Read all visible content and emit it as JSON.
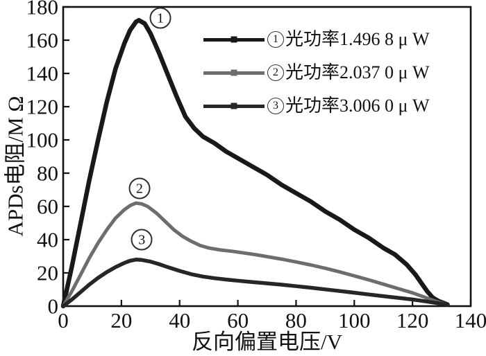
{
  "figure": {
    "background": "#ffffff",
    "axis_color": "#111111",
    "text_color": "#111111"
  },
  "chart_data": {
    "type": "line",
    "title": "",
    "xlabel": "反向偏置电压/V",
    "ylabel": "APDs电阻/M Ω",
    "xlim": [
      0,
      140
    ],
    "ylim": [
      0,
      180
    ],
    "xticks": [
      0,
      20,
      40,
      60,
      80,
      100,
      120,
      140
    ],
    "yticks": [
      0,
      20,
      40,
      60,
      80,
      100,
      120,
      140,
      160,
      180
    ],
    "grid": false,
    "legend_position": "upper-right-inside",
    "series": [
      {
        "index": "1",
        "name": "光功率1.496 8 μ W",
        "power_uW": 1.4968,
        "color": "#191919",
        "line_width": 6.5,
        "points": [
          [
            0,
            0
          ],
          [
            3,
            24
          ],
          [
            6,
            50
          ],
          [
            9,
            76
          ],
          [
            12,
            100
          ],
          [
            15,
            123
          ],
          [
            18,
            143
          ],
          [
            21,
            158
          ],
          [
            23,
            166
          ],
          [
            25,
            171
          ],
          [
            26,
            172
          ],
          [
            28,
            170
          ],
          [
            30,
            164
          ],
          [
            33,
            152
          ],
          [
            36,
            139
          ],
          [
            39,
            126
          ],
          [
            42,
            114
          ],
          [
            45,
            107
          ],
          [
            48,
            102
          ],
          [
            52,
            98
          ],
          [
            56,
            93
          ],
          [
            60,
            89
          ],
          [
            65,
            84
          ],
          [
            70,
            79
          ],
          [
            75,
            73
          ],
          [
            80,
            68
          ],
          [
            85,
            63
          ],
          [
            90,
            57
          ],
          [
            95,
            52
          ],
          [
            100,
            46
          ],
          [
            105,
            41
          ],
          [
            110,
            35
          ],
          [
            114,
            31
          ],
          [
            118,
            25
          ],
          [
            121,
            19
          ],
          [
            123,
            14
          ],
          [
            125,
            9
          ],
          [
            127,
            5
          ],
          [
            129,
            3
          ],
          [
            132,
            1
          ]
        ]
      },
      {
        "index": "2",
        "name": "光功率2.037 0 μ W",
        "power_uW": 2.037,
        "color": "#6d6d6d",
        "line_width": 5,
        "points": [
          [
            0,
            0
          ],
          [
            3,
            9
          ],
          [
            6,
            19
          ],
          [
            9,
            29
          ],
          [
            12,
            38
          ],
          [
            15,
            46
          ],
          [
            18,
            53
          ],
          [
            21,
            58
          ],
          [
            23,
            60.5
          ],
          [
            25,
            62
          ],
          [
            27,
            61.5
          ],
          [
            29,
            60
          ],
          [
            32,
            56
          ],
          [
            35,
            51
          ],
          [
            38,
            46
          ],
          [
            41,
            42
          ],
          [
            44,
            39
          ],
          [
            47,
            36.5
          ],
          [
            50,
            35
          ],
          [
            54,
            33.8
          ],
          [
            58,
            33
          ],
          [
            62,
            32
          ],
          [
            66,
            31
          ],
          [
            70,
            29.8
          ],
          [
            75,
            28.3
          ],
          [
            80,
            26.6
          ],
          [
            85,
            24.8
          ],
          [
            90,
            22.8
          ],
          [
            95,
            20.6
          ],
          [
            100,
            18.2
          ],
          [
            105,
            15.8
          ],
          [
            110,
            13.2
          ],
          [
            115,
            10.6
          ],
          [
            120,
            8
          ],
          [
            124,
            5.5
          ],
          [
            127,
            3.5
          ],
          [
            130,
            1.8
          ],
          [
            132,
            1
          ]
        ]
      },
      {
        "index": "3",
        "name": "光功率3.006 0 μ W",
        "power_uW": 3.006,
        "color": "#262626",
        "line_width": 5.5,
        "points": [
          [
            0,
            0
          ],
          [
            3,
            4
          ],
          [
            6,
            8.5
          ],
          [
            9,
            13
          ],
          [
            12,
            17
          ],
          [
            15,
            20.5
          ],
          [
            18,
            23.5
          ],
          [
            21,
            26
          ],
          [
            23,
            27.3
          ],
          [
            25,
            28
          ],
          [
            27,
            27.8
          ],
          [
            30,
            26.8
          ],
          [
            33,
            25.2
          ],
          [
            36,
            23.4
          ],
          [
            40,
            21.2
          ],
          [
            44,
            19.2
          ],
          [
            48,
            17.8
          ],
          [
            52,
            16.8
          ],
          [
            56,
            16
          ],
          [
            60,
            15.3
          ],
          [
            65,
            14.5
          ],
          [
            70,
            13.7
          ],
          [
            75,
            12.9
          ],
          [
            80,
            12
          ],
          [
            85,
            11.1
          ],
          [
            90,
            10.1
          ],
          [
            95,
            9.1
          ],
          [
            100,
            8.1
          ],
          [
            105,
            7
          ],
          [
            110,
            6
          ],
          [
            115,
            5
          ],
          [
            120,
            4
          ],
          [
            124,
            3
          ],
          [
            127,
            2.2
          ],
          [
            130,
            1.4
          ],
          [
            132,
            1
          ]
        ]
      }
    ],
    "annotations": [
      {
        "label": "1",
        "x": 33.4,
        "y": 173.3
      },
      {
        "label": "2",
        "x": 26.2,
        "y": 70.8
      },
      {
        "label": "3",
        "x": 27.0,
        "y": 40.0
      }
    ]
  }
}
